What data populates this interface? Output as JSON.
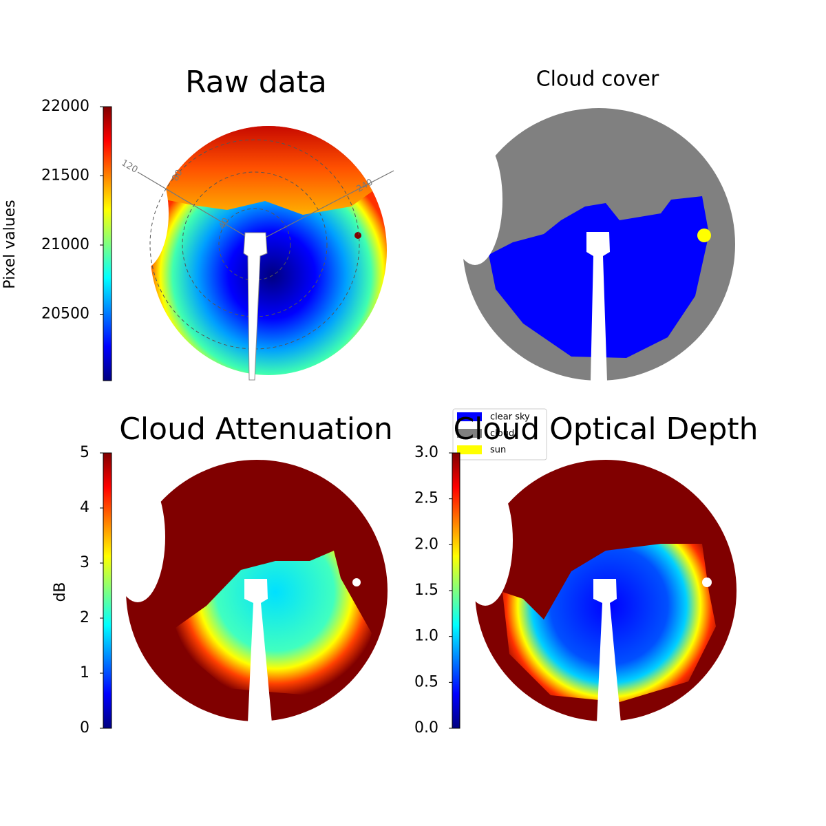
{
  "chart_data": [
    {
      "type": "image",
      "title": "Raw data",
      "colorbar_label": "Pixel values",
      "colormap": "jet",
      "ylim": [
        20020,
        22000
      ],
      "yticks": [
        20500,
        21000,
        21500,
        22000
      ],
      "annotations": [
        "120",
        "80",
        "240",
        "40"
      ]
    },
    {
      "type": "image",
      "title": "Cloud cover",
      "legend_loc": "lower left",
      "series": [
        {
          "name": "clear sky",
          "color": "#0000ff"
        },
        {
          "name": "cloud",
          "color": "#808080"
        },
        {
          "name": "sun",
          "color": "#ffff00"
        }
      ]
    },
    {
      "type": "image",
      "title": "Cloud Attenuation",
      "colorbar_label": "dB",
      "colormap": "jet",
      "ylim": [
        0,
        5
      ],
      "yticks": [
        0,
        1,
        2,
        3,
        4,
        5
      ]
    },
    {
      "type": "image",
      "title": "Cloud Optical Depth",
      "colormap": "jet",
      "ylim": [
        0,
        3
      ],
      "yticks": [
        {
          "value": 0,
          "label": "0.0"
        },
        0.5,
        {
          "value": 1,
          "label": "1.0"
        },
        1.5,
        {
          "value": 2,
          "label": "2.0"
        },
        2.5,
        {
          "value": 3,
          "label": "3.0"
        }
      ]
    }
  ]
}
